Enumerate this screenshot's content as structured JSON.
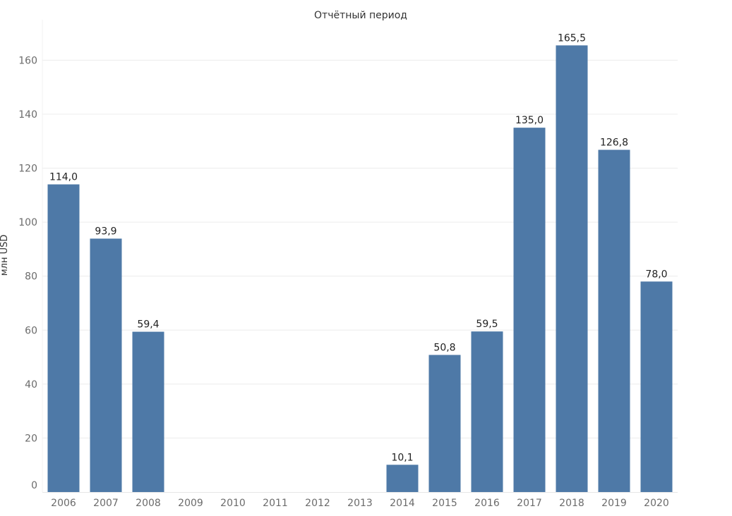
{
  "chart_data": {
    "type": "bar",
    "title": "Отчётный период",
    "xlabel": "",
    "ylabel": "млн USD",
    "categories": [
      "2006",
      "2007",
      "2008",
      "2009",
      "2010",
      "2011",
      "2012",
      "2013",
      "2014",
      "2015",
      "2016",
      "2017",
      "2018",
      "2019",
      "2020"
    ],
    "values": [
      114.0,
      93.9,
      59.4,
      null,
      null,
      null,
      null,
      null,
      10.1,
      50.8,
      59.5,
      135.0,
      165.5,
      126.8,
      78.0
    ],
    "data_labels": [
      "114,0",
      "93,9",
      "59,4",
      "",
      "",
      "",
      "",
      "",
      "10,1",
      "50,8",
      "59,5",
      "135,0",
      "165,5",
      "126,8",
      "78,0"
    ],
    "ylim": [
      0,
      175
    ],
    "yticks": [
      0,
      20,
      40,
      60,
      80,
      100,
      120,
      140,
      160
    ],
    "grid": true,
    "legend": "none",
    "colors": {
      "bar": "#4e79a7",
      "grid": "#ececec"
    }
  }
}
